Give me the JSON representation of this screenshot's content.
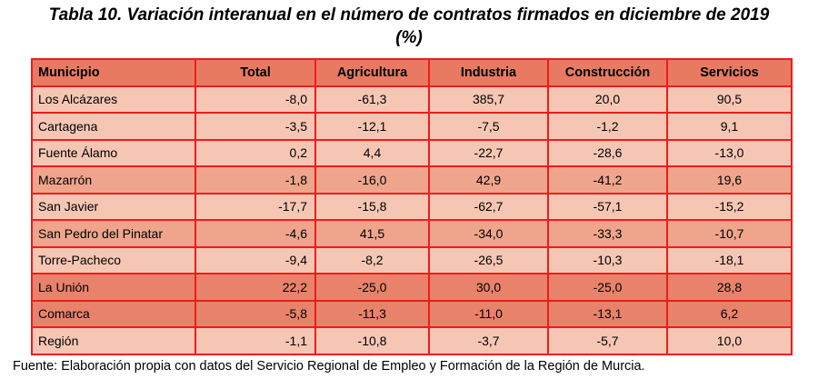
{
  "title_line1": "Tabla 10. Variación interanual en el número de contratos firmados en diciembre de 2019",
  "title_line2": "(%)",
  "columns": [
    "Municipio",
    "Total",
    "Agricultura",
    "Industria",
    "Construcción",
    "Servicios"
  ],
  "rows": [
    {
      "name": "Los Alcázares",
      "values": [
        "-8,0",
        "-61,3",
        "385,7",
        "20,0",
        "90,5"
      ]
    },
    {
      "name": "Cartagena",
      "values": [
        "-3,5",
        "-12,1",
        "-7,5",
        "-1,2",
        "9,1"
      ]
    },
    {
      "name": "Fuente Álamo",
      "values": [
        "0,2",
        "4,4",
        "-22,7",
        "-28,6",
        "-13,0"
      ]
    },
    {
      "name": "Mazarrón",
      "values": [
        "-1,8",
        "-16,0",
        "42,9",
        "-41,2",
        "19,6"
      ]
    },
    {
      "name": "San Javier",
      "values": [
        "-17,7",
        "-15,8",
        "-62,7",
        "-57,1",
        "-15,2"
      ]
    },
    {
      "name": "San Pedro del Pinatar",
      "values": [
        "-4,6",
        "41,5",
        "-34,0",
        "-33,3",
        "-10,7"
      ]
    },
    {
      "name": "Torre-Pacheco",
      "values": [
        "-9,4",
        "-8,2",
        "-26,5",
        "-10,3",
        "-18,1"
      ]
    },
    {
      "name": "La Unión",
      "values": [
        "22,2",
        "-25,0",
        "30,0",
        "-25,0",
        "28,8"
      ]
    },
    {
      "name": "Comarca",
      "values": [
        "-5,8",
        "-11,3",
        "-11,0",
        "-13,1",
        "6,2"
      ]
    },
    {
      "name": "Región",
      "values": [
        "-1,1",
        "-10,8",
        "-3,7",
        "-5,7",
        "10,0"
      ]
    }
  ],
  "source": "Fuente: Elaboración propia con datos del Servicio Regional de Empleo y Formación de la Región de Murcia.",
  "colors": {
    "header": "#e97a62",
    "row_light": "#f6c6b5",
    "row_mid": "#eea58c",
    "row_dark": "#e8826a",
    "border": "#ee1c1c"
  }
}
